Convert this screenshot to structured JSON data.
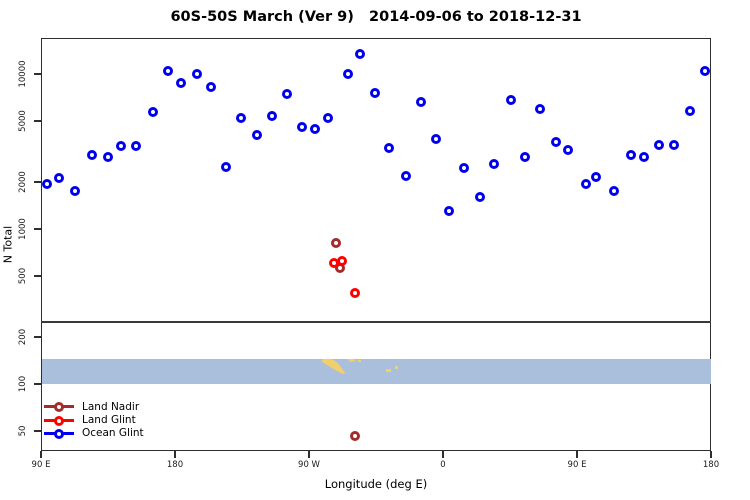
{
  "chart_data": {
    "type": "scatter",
    "title": "60S-50S March (Ver 9)   2014-09-06 to 2018-12-31",
    "xlabel": "Longitude (deg E)",
    "ylabel": "N Total",
    "grid": false,
    "legend_position": "bottom-left",
    "x_axis": {
      "range": [
        90,
        540
      ],
      "ticks": [
        {
          "lon": 90,
          "label": "90 E"
        },
        {
          "lon": 180,
          "label": "180"
        },
        {
          "lon": 270,
          "label": "90 W"
        },
        {
          "lon": 360,
          "label": "0"
        },
        {
          "lon": 450,
          "label": "90 E"
        },
        {
          "lon": 540,
          "label": "180"
        }
      ]
    },
    "y_axis": {
      "scale": "log",
      "range": [
        37,
        17000
      ],
      "ticks": [
        10000,
        5000,
        2000,
        1000,
        500,
        200,
        100,
        50
      ]
    },
    "panel_divider_value": 250,
    "map_band": {
      "value_range": [
        100,
        145
      ],
      "ocean_color": "#AABFDC",
      "land_color": "#F2CF6B",
      "land_regions": [
        "south-america-tip",
        "small-islands"
      ]
    },
    "series": [
      {
        "name": "Land Nadir",
        "color": "#A52A2A",
        "points": [
          [
            288,
            816
          ],
          [
            291,
            562
          ],
          [
            301,
            46
          ]
        ]
      },
      {
        "name": "Land Glint",
        "color": "#FF0000",
        "points": [
          [
            287,
            600
          ],
          [
            292,
            624
          ],
          [
            301,
            388
          ]
        ]
      },
      {
        "name": "Ocean Glint",
        "color": "#0000EE",
        "points": [
          [
            94,
            1950
          ],
          [
            102,
            2140
          ],
          [
            113,
            1760
          ],
          [
            124,
            3000
          ],
          [
            135,
            2915
          ],
          [
            144,
            3440
          ],
          [
            154,
            3410
          ],
          [
            165,
            5710
          ],
          [
            175,
            10400
          ],
          [
            184,
            8790
          ],
          [
            195,
            10050
          ],
          [
            204,
            8280
          ],
          [
            214,
            2500
          ],
          [
            224,
            5180
          ],
          [
            235,
            4060
          ],
          [
            245,
            5380
          ],
          [
            255,
            7400
          ],
          [
            265,
            4530
          ],
          [
            274,
            4420
          ],
          [
            283,
            5220
          ],
          [
            296,
            10050
          ],
          [
            304,
            13400
          ],
          [
            314,
            7570
          ],
          [
            324,
            3320
          ],
          [
            335,
            2210
          ],
          [
            345,
            6590
          ],
          [
            355,
            3810
          ],
          [
            364,
            1310
          ],
          [
            374,
            2470
          ],
          [
            385,
            1600
          ],
          [
            394,
            2630
          ],
          [
            406,
            6760
          ],
          [
            415,
            2930
          ],
          [
            425,
            5940
          ],
          [
            436,
            3640
          ],
          [
            444,
            3250
          ],
          [
            456,
            1940
          ],
          [
            463,
            2150
          ],
          [
            475,
            1770
          ],
          [
            486,
            2990
          ],
          [
            495,
            2900
          ],
          [
            505,
            3470
          ],
          [
            515,
            3480
          ],
          [
            526,
            5770
          ],
          [
            536,
            10500
          ]
        ]
      }
    ]
  }
}
